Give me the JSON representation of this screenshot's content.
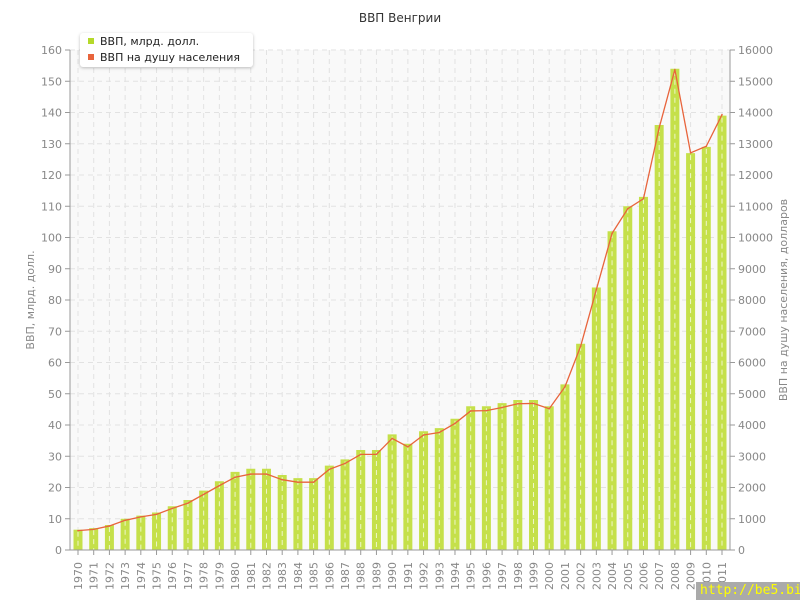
{
  "chart_data": {
    "type": "bar+line",
    "title": "ВВП Венгрии",
    "ylabel": "ВВП, млрд. долл.",
    "y2label": "ВВП на душу населения, долларов",
    "ylim": [
      0,
      160
    ],
    "y2lim": [
      0,
      16000
    ],
    "yticks": [
      0,
      10,
      20,
      30,
      40,
      50,
      60,
      70,
      80,
      90,
      100,
      110,
      120,
      130,
      140,
      150,
      160
    ],
    "y2ticks": [
      0,
      1000,
      2000,
      3000,
      4000,
      5000,
      6000,
      7000,
      8000,
      9000,
      10000,
      11000,
      12000,
      13000,
      14000,
      15000,
      16000
    ],
    "grid": true,
    "legend_position": "top-left",
    "categories": [
      "1970",
      "1971",
      "1972",
      "1973",
      "1974",
      "1975",
      "1976",
      "1977",
      "1978",
      "1979",
      "1980",
      "1981",
      "1982",
      "1983",
      "1984",
      "1985",
      "1986",
      "1987",
      "1988",
      "1989",
      "1990",
      "1991",
      "1992",
      "1993",
      "1994",
      "1995",
      "1996",
      "1997",
      "1998",
      "1999",
      "2000",
      "2001",
      "2002",
      "2003",
      "2004",
      "2005",
      "2006",
      "2007",
      "2008",
      "2009",
      "2010",
      "2011"
    ],
    "series": [
      {
        "name": "ВВП, млрд. долл.",
        "type": "bar",
        "axis": "left",
        "color": "#c5e04a",
        "values": [
          6.5,
          7,
          8,
          10,
          11,
          12,
          14,
          16,
          19,
          22,
          25,
          26,
          26,
          24,
          23,
          23,
          27,
          29,
          32,
          32,
          37,
          34,
          38,
          39,
          42,
          46,
          46,
          47,
          48,
          48,
          46,
          53,
          66,
          84,
          102,
          110,
          113,
          136,
          154,
          127,
          129,
          139
        ]
      },
      {
        "name": "ВВП на душу населения",
        "type": "line",
        "axis": "right",
        "color": "#e8643c",
        "values": [
          620,
          660,
          770,
          950,
          1060,
          1140,
          1330,
          1500,
          1780,
          2060,
          2330,
          2430,
          2430,
          2250,
          2170,
          2170,
          2580,
          2770,
          3060,
          3060,
          3570,
          3300,
          3680,
          3760,
          4050,
          4450,
          4460,
          4560,
          4680,
          4690,
          4520,
          5220,
          6520,
          8330,
          10130,
          10920,
          11240,
          13510,
          15370,
          12710,
          12920,
          13930
        ]
      }
    ]
  },
  "watermark": "http://be5.biz/"
}
